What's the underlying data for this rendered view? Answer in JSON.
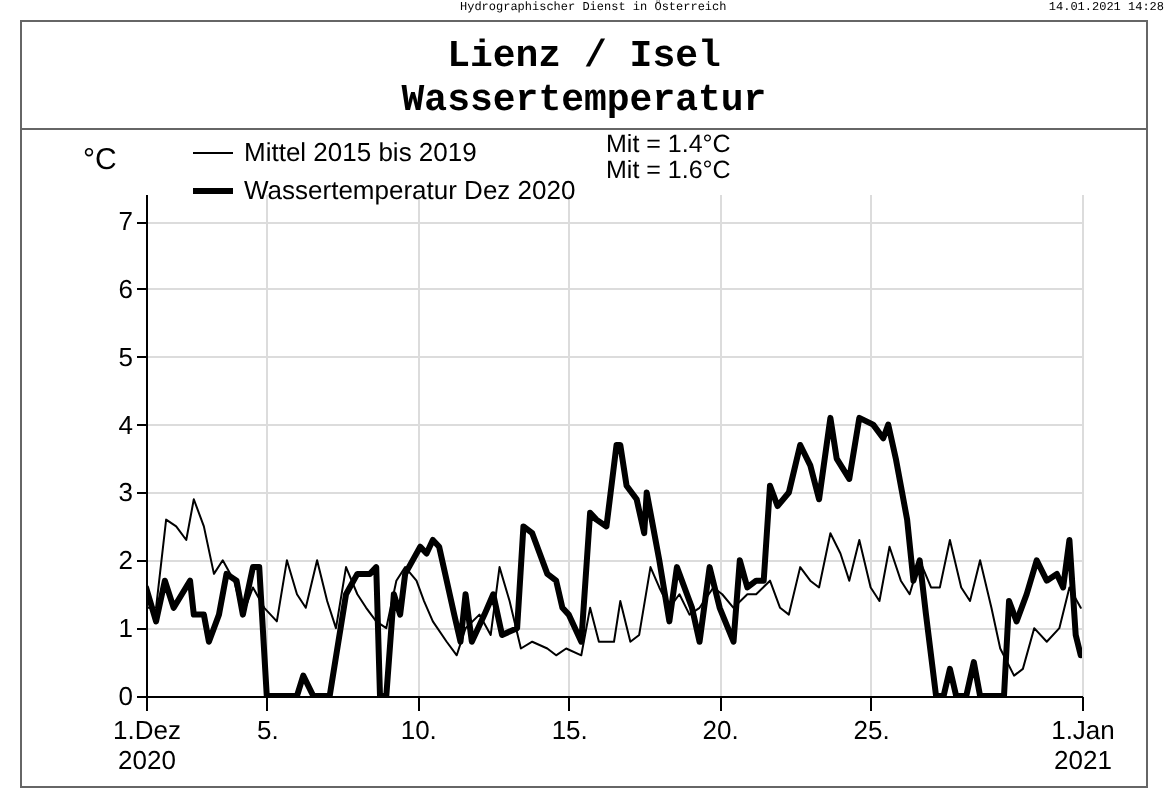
{
  "chart_data": {
    "type": "line",
    "title": "Lienz / Isel",
    "subtitle": "Wassertemperatur",
    "ylabel": "°C",
    "annotations": [
      "Hydrographischer Dienst in Österreich",
      "14.01.2021 14:28",
      "Mit =  1.4°C",
      "Mit =  1.6°C"
    ],
    "xlim": [
      "2020-12-01T00:00",
      "2021-01-01T00:00"
    ],
    "xticks": [
      {
        "value": "2020-12-01T00:00",
        "label": "1.Dez\n2020"
      },
      {
        "value": "2020-12-05T00:00",
        "label": "5."
      },
      {
        "value": "2020-12-10T00:00",
        "label": "10."
      },
      {
        "value": "2020-12-15T00:00",
        "label": "15."
      },
      {
        "value": "2020-12-20T00:00",
        "label": "20."
      },
      {
        "value": "2020-12-25T00:00",
        "label": "25."
      },
      {
        "value": "2021-01-01T00:00",
        "label": "1.Jan\n2021"
      }
    ],
    "ylim": [
      0,
      7.4
    ],
    "yticks": [
      0,
      1,
      2,
      3,
      4,
      5,
      6,
      7
    ],
    "grid": true,
    "legend": "top left",
    "line_style": "solid",
    "series": [
      {
        "name": "Mittel 2015 bis 2019",
        "color": "#000000",
        "x": [
          "2020-12-01T00:00",
          "2020-12-01T08:00",
          "2020-12-01T16:00",
          "2020-12-02T00:00",
          "2020-12-02T08:00",
          "2020-12-02T14:00",
          "2020-12-02T22:00",
          "2020-12-03T06:00",
          "2020-12-03T13:00",
          "2020-12-03T22:00",
          "2020-12-04T05:00",
          "2020-12-04T13:00",
          "2020-12-04T22:00",
          "2020-12-05T08:00",
          "2020-12-05T16:00",
          "2020-12-06T00:00",
          "2020-12-06T07:00",
          "2020-12-06T16:00",
          "2020-12-07T00:00",
          "2020-12-07T07:00",
          "2020-12-07T15:00",
          "2020-12-08T00:00",
          "2020-12-08T07:00",
          "2020-12-08T15:00",
          "2020-12-08T23:00",
          "2020-12-09T07:00",
          "2020-12-09T14:00",
          "2020-12-09T23:00",
          "2020-12-10T05:00",
          "2020-12-10T12:00",
          "2020-12-10T23:00",
          "2020-12-11T07:00",
          "2020-12-11T14:00",
          "2020-12-12T01:00",
          "2020-12-12T10:00",
          "2020-12-12T17:00",
          "2020-12-13T01:00",
          "2020-12-13T10:00",
          "2020-12-13T19:00",
          "2020-12-14T07:00",
          "2020-12-14T14:00",
          "2020-12-14T22:00",
          "2020-12-15T10:00",
          "2020-12-15T17:00",
          "2020-12-16T00:00",
          "2020-12-16T12:00",
          "2020-12-16T17:00",
          "2020-12-17T01:00",
          "2020-12-17T08:00",
          "2020-12-17T17:00",
          "2020-12-18T00:00",
          "2020-12-18T08:00",
          "2020-12-18T16:00",
          "2020-12-19T00:00",
          "2020-12-19T08:00",
          "2020-12-19T19:00",
          "2020-12-20T02:00",
          "2020-12-20T11:00",
          "2020-12-20T22:00",
          "2020-12-21T05:00",
          "2020-12-21T16:00",
          "2020-12-22T00:00",
          "2020-12-22T07:00",
          "2020-12-22T16:00",
          "2020-12-23T00:00",
          "2020-12-23T07:00",
          "2020-12-23T16:00",
          "2020-12-24T00:00",
          "2020-12-24T07:00",
          "2020-12-24T15:00",
          "2020-12-25T00:00",
          "2020-12-25T07:00",
          "2020-12-25T15:00",
          "2020-12-26T00:00",
          "2020-12-26T07:00",
          "2020-12-26T15:00",
          "2020-12-27T00:00",
          "2020-12-27T07:00",
          "2020-12-27T15:00",
          "2020-12-28T00:00",
          "2020-12-28T07:00",
          "2020-12-28T15:00",
          "2020-12-29T00:00",
          "2020-12-29T07:00",
          "2020-12-29T18:00",
          "2020-12-30T01:00",
          "2020-12-30T10:00",
          "2020-12-30T20:00",
          "2020-12-31T06:00",
          "2020-12-31T14:00",
          "2020-12-31T23:00"
        ],
        "values": [
          1.3,
          1.3,
          2.6,
          2.5,
          2.3,
          2.9,
          2.5,
          1.8,
          2.0,
          1.7,
          1.2,
          1.6,
          1.3,
          1.1,
          2.0,
          1.5,
          1.3,
          2.0,
          1.4,
          1.0,
          1.9,
          1.5,
          1.3,
          1.1,
          1.0,
          1.7,
          1.9,
          1.7,
          1.4,
          1.1,
          0.8,
          0.6,
          1.0,
          1.2,
          0.9,
          1.9,
          1.4,
          0.7,
          0.8,
          0.7,
          0.6,
          0.7,
          0.6,
          1.3,
          0.8,
          0.8,
          1.4,
          0.8,
          0.9,
          1.9,
          1.6,
          1.3,
          1.5,
          1.2,
          1.3,
          1.6,
          1.5,
          1.3,
          1.5,
          1.5,
          1.7,
          1.3,
          1.2,
          1.9,
          1.7,
          1.6,
          2.4,
          2.1,
          1.7,
          2.3,
          1.6,
          1.4,
          2.2,
          1.7,
          1.5,
          2.0,
          1.6,
          1.6,
          2.3,
          1.6,
          1.4,
          2.0,
          1.3,
          0.7,
          0.3,
          0.4,
          1.0,
          0.8,
          1.0,
          1.6,
          1.3
        ]
      },
      {
        "name": "Wassertemperatur Dez 2020",
        "color": "#000000",
        "x": [
          "2020-12-01T00:00",
          "2020-12-01T08:00",
          "2020-12-01T15:00",
          "2020-12-01T22:00",
          "2020-12-02T11:00",
          "2020-12-02T14:00",
          "2020-12-02T22:00",
          "2020-12-03T02:00",
          "2020-12-03T10:00",
          "2020-12-03T16:00",
          "2020-12-04T00:00",
          "2020-12-04T05:00",
          "2020-12-04T13:00",
          "2020-12-04T18:00",
          "2020-12-05T00:00",
          "2020-12-06T00:00",
          "2020-12-06T05:00",
          "2020-12-06T13:00",
          "2020-12-07T02:00",
          "2020-12-07T15:00",
          "2020-12-08T00:00",
          "2020-12-08T10:00",
          "2020-12-08T15:00",
          "2020-12-08T18:00",
          "2020-12-08T23:00",
          "2020-12-09T05:00",
          "2020-12-09T10:00",
          "2020-12-09T14:00",
          "2020-12-10T02:00",
          "2020-12-10T07:00",
          "2020-12-10T12:00",
          "2020-12-10T17:00",
          "2020-12-10T23:00",
          "2020-12-11T05:00",
          "2020-12-11T10:00",
          "2020-12-11T14:00",
          "2020-12-11T19:00",
          "2020-12-12T05:00",
          "2020-12-12T12:00",
          "2020-12-12T19:00",
          "2020-12-13T07:00",
          "2020-12-13T12:00",
          "2020-12-13T19:00",
          "2020-12-14T07:00",
          "2020-12-14T14:00",
          "2020-12-14T19:00",
          "2020-12-15T00:00",
          "2020-12-15T10:00",
          "2020-12-15T17:00",
          "2020-12-15T22:00",
          "2020-12-16T06:00",
          "2020-12-16T14:00",
          "2020-12-16T17:00",
          "2020-12-16T22:00",
          "2020-12-17T06:00",
          "2020-12-17T12:00",
          "2020-12-17T14:00",
          "2020-12-17T19:00",
          "2020-12-18T00:00",
          "2020-12-18T08:00",
          "2020-12-18T14:00",
          "2020-12-18T22:00",
          "2020-12-19T02:00",
          "2020-12-19T08:00",
          "2020-12-19T16:00",
          "2020-12-20T00:00",
          "2020-12-20T11:00",
          "2020-12-20T16:00",
          "2020-12-20T22:00",
          "2020-12-21T05:00",
          "2020-12-21T11:00",
          "2020-12-21T16:00",
          "2020-12-21T22:00",
          "2020-12-22T07:00",
          "2020-12-22T16:00",
          "2020-12-23T00:00",
          "2020-12-23T07:00",
          "2020-12-23T16:00",
          "2020-12-23T21:00",
          "2020-12-24T07:00",
          "2020-12-24T15:00",
          "2020-12-25T02:00",
          "2020-12-25T10:00",
          "2020-12-25T14:00",
          "2020-12-25T20:00",
          "2020-12-26T05:00",
          "2020-12-26T10:00",
          "2020-12-26T15:00",
          "2020-12-26T20:00",
          "2020-12-27T04:00",
          "2020-12-27T10:00",
          "2020-12-27T15:00",
          "2020-12-27T20:00",
          "2020-12-28T04:00",
          "2020-12-28T10:00",
          "2020-12-28T15:00",
          "2020-12-29T10:00",
          "2020-12-29T14:00",
          "2020-12-29T20:00",
          "2020-12-30T04:00",
          "2020-12-30T12:00",
          "2020-12-30T20:00",
          "2020-12-31T04:00",
          "2020-12-31T09:00",
          "2020-12-31T14:00",
          "2020-12-31T19:00",
          "2020-12-31T23:00"
        ],
        "values": [
          1.6,
          1.1,
          1.7,
          1.3,
          1.7,
          1.2,
          1.2,
          0.8,
          1.2,
          1.8,
          1.7,
          1.2,
          1.9,
          1.9,
          0,
          0,
          0.3,
          0,
          0,
          1.5,
          1.8,
          1.8,
          1.9,
          0,
          0,
          1.5,
          1.2,
          1.8,
          2.2,
          2.1,
          2.3,
          2.2,
          1.7,
          1.2,
          0.8,
          1.5,
          0.8,
          1.2,
          1.5,
          0.9,
          1.0,
          2.5,
          2.4,
          1.8,
          1.7,
          1.3,
          1.2,
          0.8,
          2.7,
          2.6,
          2.5,
          3.7,
          3.7,
          3.1,
          2.9,
          2.4,
          3.0,
          2.5,
          2.0,
          1.1,
          1.9,
          1.5,
          1.3,
          0.8,
          1.9,
          1.3,
          0.8,
          2.0,
          1.6,
          1.7,
          1.7,
          3.1,
          2.8,
          3.0,
          3.7,
          3.4,
          2.9,
          4.1,
          3.5,
          3.2,
          4.1,
          4.0,
          3.8,
          4.0,
          3.5,
          2.6,
          1.7,
          2.0,
          1.2,
          0,
          0,
          0.4,
          0,
          0,
          0.5,
          0,
          0,
          1.4,
          1.1,
          1.5,
          2.0,
          1.7,
          1.8,
          1.6,
          2.3,
          0.9,
          0.6
        ]
      }
    ]
  }
}
